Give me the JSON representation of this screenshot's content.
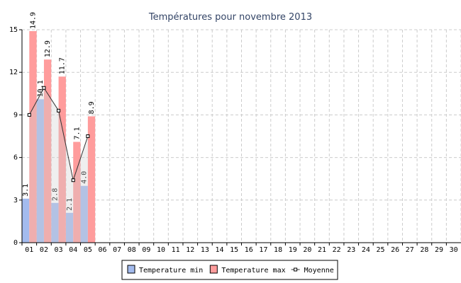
{
  "chart_data": {
    "type": "bar",
    "title": "Températures pour novembre 2013",
    "categories": [
      "01",
      "02",
      "03",
      "04",
      "05",
      "06",
      "07",
      "08",
      "09",
      "10",
      "11",
      "12",
      "13",
      "14",
      "15",
      "16",
      "17",
      "18",
      "19",
      "20",
      "21",
      "22",
      "23",
      "24",
      "25",
      "26",
      "27",
      "28",
      "29",
      "30"
    ],
    "series": [
      {
        "name": "Temperature min",
        "type": "bar",
        "color": "#a3bbee",
        "values": [
          3.1,
          10.1,
          2.8,
          2.1,
          4.0,
          null,
          null,
          null,
          null,
          null,
          null,
          null,
          null,
          null,
          null,
          null,
          null,
          null,
          null,
          null,
          null,
          null,
          null,
          null,
          null,
          null,
          null,
          null,
          null,
          null
        ],
        "value_labels": [
          "3.1",
          "10.1",
          "2.8",
          "2.1",
          "4.0",
          null,
          null,
          null,
          null,
          null,
          null,
          null,
          null,
          null,
          null,
          null,
          null,
          null,
          null,
          null,
          null,
          null,
          null,
          null,
          null,
          null,
          null,
          null,
          null,
          null
        ]
      },
      {
        "name": "Temperature max",
        "type": "bar",
        "color": "#ff9c9c",
        "values": [
          14.9,
          12.9,
          11.7,
          7.1,
          8.9,
          null,
          null,
          null,
          null,
          null,
          null,
          null,
          null,
          null,
          null,
          null,
          null,
          null,
          null,
          null,
          null,
          null,
          null,
          null,
          null,
          null,
          null,
          null,
          null,
          null
        ],
        "value_labels": [
          "14.9",
          "12.9",
          "11.7",
          "7.1",
          "8.9",
          null,
          null,
          null,
          null,
          null,
          null,
          null,
          null,
          null,
          null,
          null,
          null,
          null,
          null,
          null,
          null,
          null,
          null,
          null,
          null,
          null,
          null,
          null,
          null,
          null
        ]
      },
      {
        "name": "Moyenne",
        "type": "line",
        "color": "#333333",
        "values": [
          9.0,
          10.9,
          9.3,
          4.4,
          7.5,
          null,
          null,
          null,
          null,
          null,
          null,
          null,
          null,
          null,
          null,
          null,
          null,
          null,
          null,
          null,
          null,
          null,
          null,
          null,
          null,
          null,
          null,
          null,
          null,
          null
        ]
      }
    ],
    "ylim": [
      0,
      15
    ],
    "yticks": [
      0,
      3,
      6,
      9,
      12,
      15
    ],
    "grid": true,
    "legend": "bottom"
  }
}
